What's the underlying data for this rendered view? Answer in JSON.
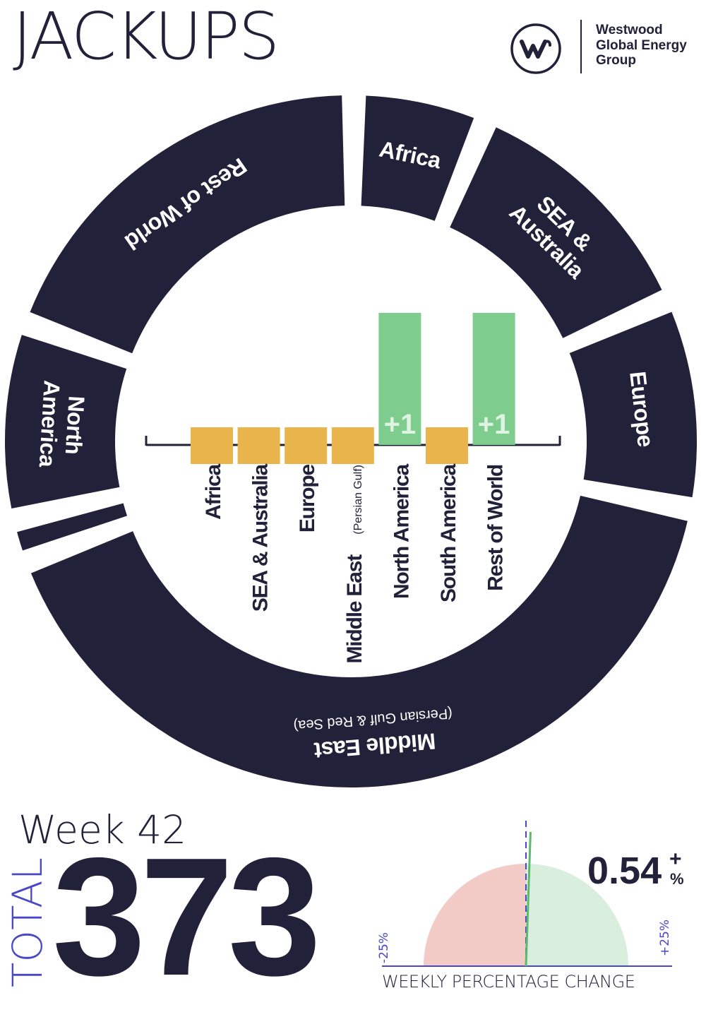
{
  "header": {
    "title": "JACKUPS",
    "logo_lines": [
      "Westwood",
      "Global Energy",
      "Group"
    ]
  },
  "colors": {
    "navy": "#22213a",
    "positive": "#7fcd8e",
    "neutral": "#e9b44c",
    "negative_half": "#f2cbc6",
    "positive_half": "#d9eedd",
    "accent": "#4a47c8"
  },
  "icons": {
    "logo": "westwood-w-icon"
  },
  "chart_data": [
    {
      "type": "pie",
      "variant": "donut",
      "categories": [
        "Africa",
        "SEA & Australia",
        "Europe",
        "Middle East (Persian Gulf & Red Sea)",
        "",
        "North America",
        "Rest of World"
      ],
      "labels": [
        [
          "Africa"
        ],
        [
          "SEA &",
          "Australia"
        ],
        [
          "Europe"
        ],
        [
          "Middle East",
          "(Persian Gulf & Red Sea)"
        ],
        [],
        [
          "North",
          "America"
        ],
        [
          "Rest of World"
        ]
      ],
      "values": [
        6.2,
        12.0,
        9.8,
        41.2,
        2.0,
        9.2,
        19.6
      ],
      "unit": "% of total (estimated)"
    },
    {
      "type": "bar",
      "title": "",
      "categories": [
        "Africa",
        "SEA & Australia",
        "Europe",
        "Middle East",
        "North America",
        "South America",
        "Rest of World"
      ],
      "category_notes": [
        "",
        "",
        "",
        "(Persian Gulf)",
        "",
        "",
        ""
      ],
      "values": [
        0,
        0,
        0,
        0,
        1,
        0,
        1
      ],
      "data_labels": [
        "",
        "",
        "",
        "",
        "+1",
        "",
        "+1"
      ],
      "ylim": [
        0,
        1
      ]
    },
    {
      "type": "gauge",
      "value": 0.54,
      "value_display": "0.54",
      "sign": "+",
      "unit": "%",
      "range": [
        -25,
        25
      ],
      "min_label": "-25%",
      "max_label": "+25%",
      "caption": "WEEKLY PERCENTAGE CHANGE"
    }
  ],
  "summary": {
    "week_label": "Week 42",
    "total_label": "TOTAL",
    "total": "373"
  }
}
